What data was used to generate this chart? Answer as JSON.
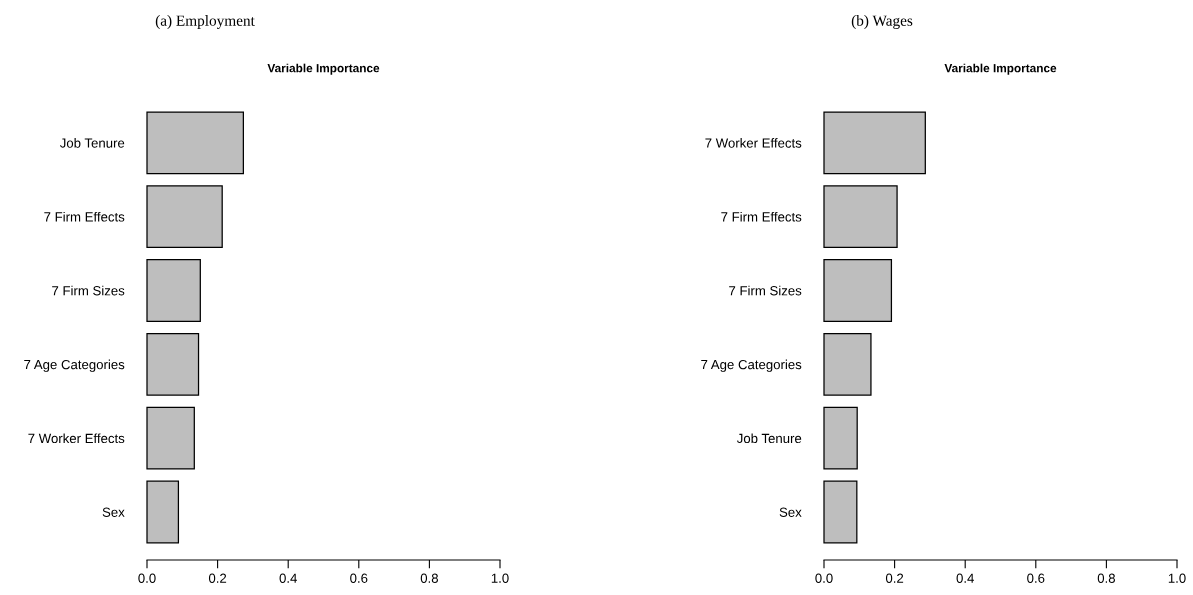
{
  "chart_data": [
    {
      "type": "bar",
      "orientation": "horizontal",
      "subtitle": "(a) Employment",
      "title": "Variable Importance",
      "categories": [
        "Job Tenure",
        "7 Firm Effects",
        "7 Firm Sizes",
        "7 Age Categories",
        "7 Worker Effects",
        "Sex"
      ],
      "values": [
        0.273,
        0.213,
        0.151,
        0.146,
        0.134,
        0.089
      ],
      "color": "#bebebe",
      "xlim": [
        0,
        1
      ],
      "xticks": [
        {
          "value": 0,
          "label": "0.0"
        },
        {
          "value": 0.2,
          "label": "0.2"
        },
        {
          "value": 0.4,
          "label": "0.4"
        },
        {
          "value": 0.6,
          "label": "0.6"
        },
        {
          "value": 0.8,
          "label": "0.8"
        },
        {
          "value": 1,
          "label": "1.0"
        }
      ],
      "grid": false
    },
    {
      "type": "bar",
      "orientation": "horizontal",
      "subtitle": "(b) Wages",
      "title": "Variable Importance",
      "categories": [
        "7 Worker Effects",
        "7 Firm Effects",
        "7 Firm Sizes",
        "7 Age Categories",
        "Job Tenure",
        "Sex"
      ],
      "values": [
        0.287,
        0.207,
        0.191,
        0.133,
        0.094,
        0.093
      ],
      "color": "#bebebe",
      "xlim": [
        0,
        1
      ],
      "xticks": [
        {
          "value": 0,
          "label": "0.0"
        },
        {
          "value": 0.2,
          "label": "0.2"
        },
        {
          "value": 0.4,
          "label": "0.4"
        },
        {
          "value": 0.6,
          "label": "0.6"
        },
        {
          "value": 0.8,
          "label": "0.8"
        },
        {
          "value": 1,
          "label": "1.0"
        }
      ],
      "grid": false
    }
  ]
}
